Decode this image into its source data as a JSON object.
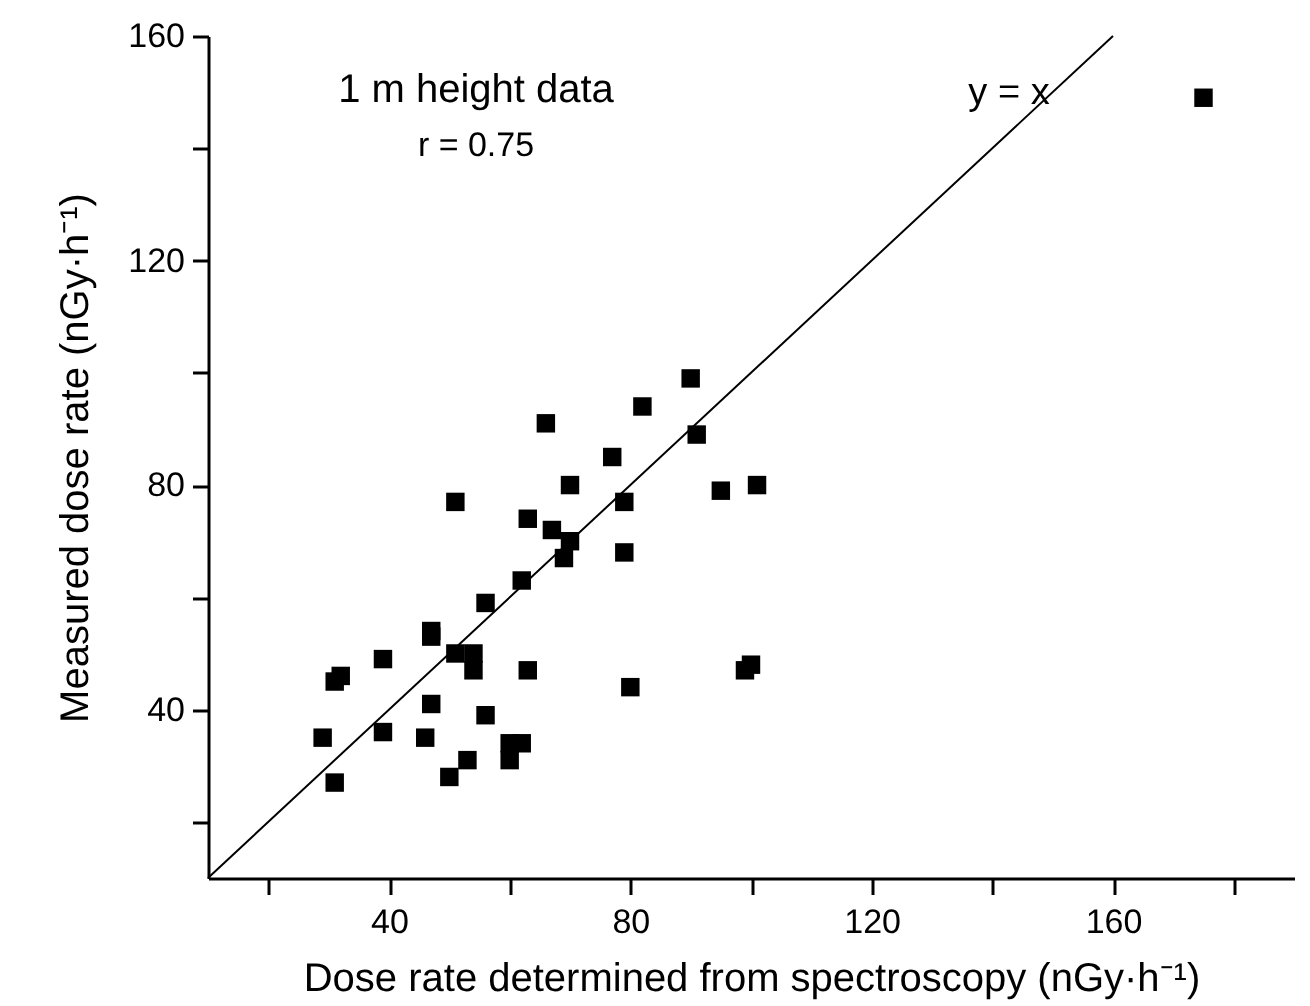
{
  "chart_data": {
    "type": "scatter",
    "xlabel": "Dose rate determined from spectroscopy (nGy·h⁻¹)",
    "ylabel": "Measured dose rate (nGy·h⁻¹)",
    "annotations": [
      "1 m height data",
      "r = 0.75"
    ],
    "xlim": [
      10,
      190
    ],
    "ylim": [
      10,
      160
    ],
    "xticks": [
      {
        "value": 20,
        "label": null
      },
      40,
      {
        "value": 60,
        "label": null
      },
      80,
      {
        "value": 100,
        "label": null
      },
      120,
      {
        "value": 140,
        "label": null
      },
      160,
      {
        "value": 180,
        "label": null
      }
    ],
    "yticks": [
      {
        "value": 20,
        "label": null
      },
      40,
      {
        "value": 60,
        "label": null
      },
      80,
      {
        "value": 100,
        "label": null
      },
      120,
      {
        "value": 140,
        "label": null
      },
      160
    ],
    "series": [
      {
        "color": "#000000",
        "marker": "square",
        "x": [
          90,
          82,
          66,
          91,
          77,
          70,
          95,
          51,
          79,
          63,
          67,
          70,
          69,
          79,
          62,
          56,
          47,
          47,
          51,
          54,
          54,
          63,
          39,
          31,
          32,
          80,
          47,
          56,
          29,
          39,
          46,
          60,
          62,
          60,
          53,
          50,
          31,
          101,
          99,
          100,
          175
        ],
        "values": [
          99,
          94,
          91,
          89,
          85,
          80,
          79,
          77,
          77,
          74,
          72,
          70,
          67,
          68,
          63,
          59,
          54,
          53,
          50,
          50,
          47,
          47,
          49,
          45,
          46,
          44,
          41,
          39,
          35,
          36,
          35,
          34,
          34,
          31,
          31,
          28,
          27,
          80,
          47,
          48,
          149
        ]
      },
      {
        "name": "y = x",
        "type": "line",
        "color": "#000000",
        "line_style": "solid",
        "x": [
          10,
          160
        ],
        "values": [
          10,
          160
        ]
      }
    ]
  }
}
